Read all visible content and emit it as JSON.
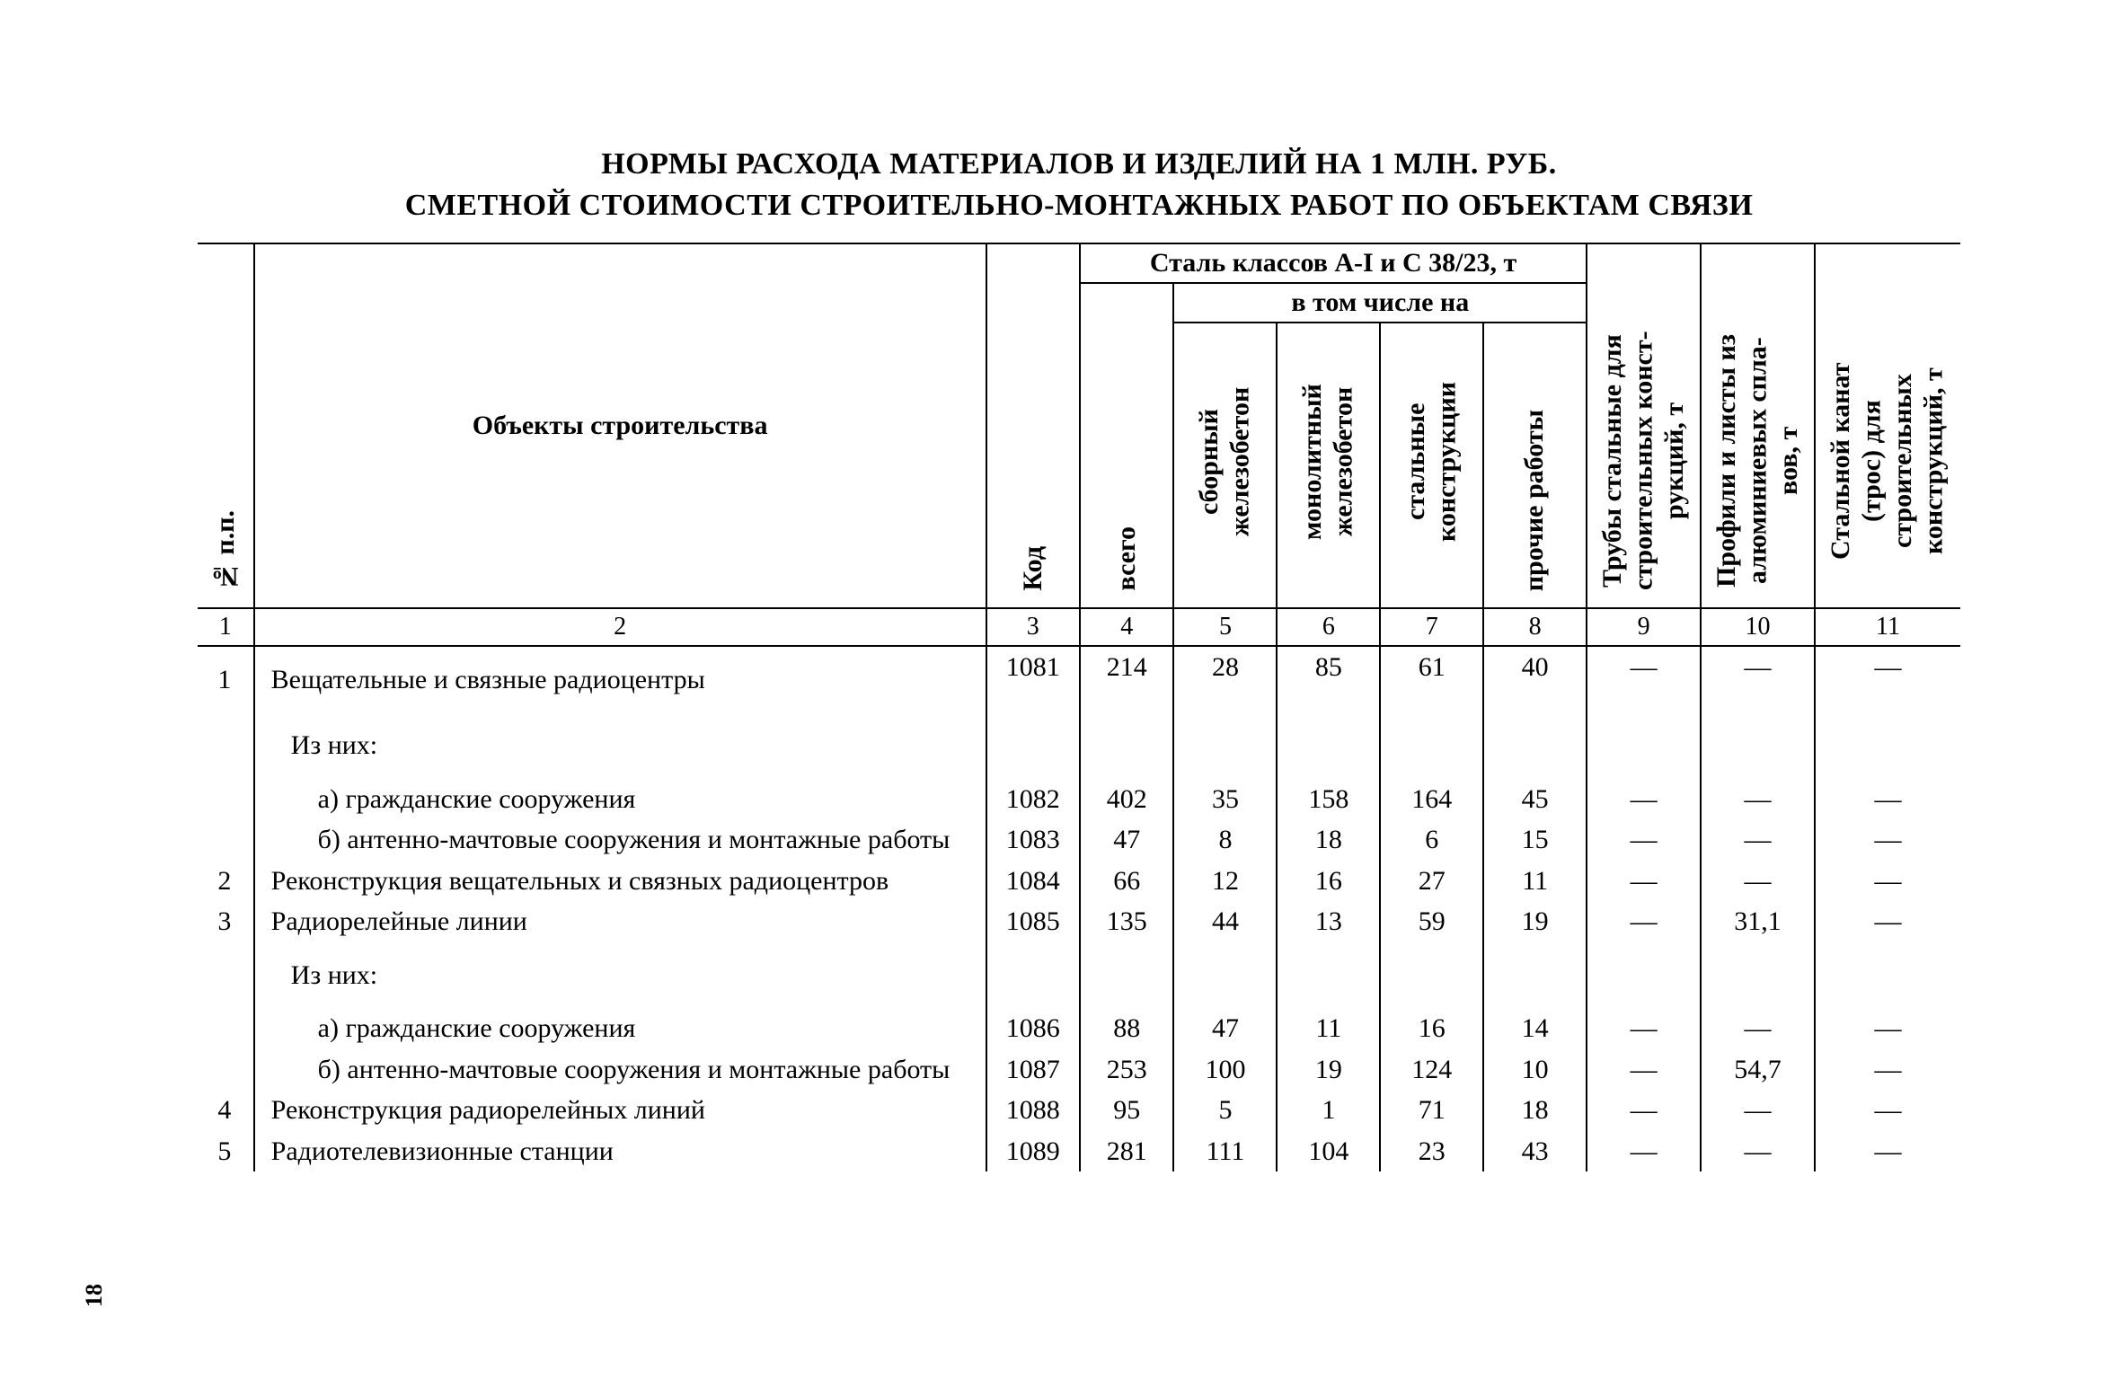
{
  "title_line1": "НОРМЫ РАСХОДА МАТЕРИАЛОВ И ИЗДЕЛИЙ НА 1 МЛН. РУБ.",
  "title_line2": "СМЕТНОЙ СТОИМОСТИ СТРОИТЕЛЬНО-МОНТАЖНЫХ РАБОТ ПО ОБЪЕКТАМ СВЯЗИ",
  "page_number": "18",
  "headers": {
    "npp": "№ п.п.",
    "objects": "Объекты строительства",
    "kod": "Код",
    "steel_group": "Сталь классов А-I и С 38/23, т",
    "vtom": "в том числе на",
    "vsego": "всего",
    "sbor": "сборный железобетон",
    "mono": "монолитный железобетон",
    "stalk": "стальные конструкции",
    "proch": "прочие работы",
    "truby": "Трубы стальные для строительных конст­рукций, т",
    "profili": "Профили и листы из алюминиевых спла­вов, т",
    "kanat": "Стальной канат (трос) для строительных конструкций, т"
  },
  "colnums": [
    "1",
    "2",
    "3",
    "4",
    "5",
    "6",
    "7",
    "8",
    "9",
    "10",
    "11"
  ],
  "rows": [
    {
      "n": "1",
      "obj": "Вещательные и связные радиоцентры",
      "kod": "1081",
      "c4": "214",
      "c5": "28",
      "c6": "85",
      "c7": "61",
      "c8": "40",
      "c9": "—",
      "c10": "—",
      "c11": "—",
      "cls": ""
    },
    {
      "n": "",
      "obj": "Из них:",
      "kod": "",
      "c4": "",
      "c5": "",
      "c6": "",
      "c7": "",
      "c8": "",
      "c9": "",
      "c10": "",
      "c11": "",
      "cls": "indent1"
    },
    {
      "n": "",
      "obj": "а) гражданские сооружения",
      "kod": "1082",
      "c4": "402",
      "c5": "35",
      "c6": "158",
      "c7": "164",
      "c8": "45",
      "c9": "—",
      "c10": "—",
      "c11": "—",
      "cls": "indent2"
    },
    {
      "n": "",
      "obj": "б) антенно-мачтовые сооружения и монтаж­ные работы",
      "kod": "1083",
      "c4": "47",
      "c5": "8",
      "c6": "18",
      "c7": "6",
      "c8": "15",
      "c9": "—",
      "c10": "—",
      "c11": "—",
      "cls": "indent2"
    },
    {
      "n": "2",
      "obj": "Реконструкция вещательных и связных радио­центров",
      "kod": "1084",
      "c4": "66",
      "c5": "12",
      "c6": "16",
      "c7": "27",
      "c8": "11",
      "c9": "—",
      "c10": "—",
      "c11": "—",
      "cls": ""
    },
    {
      "n": "3",
      "obj": "Радиорелейные линии",
      "kod": "1085",
      "c4": "135",
      "c5": "44",
      "c6": "13",
      "c7": "59",
      "c8": "19",
      "c9": "—",
      "c10": "31,1",
      "c11": "—",
      "cls": ""
    },
    {
      "n": "",
      "obj": "Из них:",
      "kod": "",
      "c4": "",
      "c5": "",
      "c6": "",
      "c7": "",
      "c8": "",
      "c9": "",
      "c10": "",
      "c11": "",
      "cls": "indent1"
    },
    {
      "n": "",
      "obj": "а) гражданские сооружения",
      "kod": "1086",
      "c4": "88",
      "c5": "47",
      "c6": "11",
      "c7": "16",
      "c8": "14",
      "c9": "—",
      "c10": "—",
      "c11": "—",
      "cls": "indent2"
    },
    {
      "n": "",
      "obj": "б) антенно-мачтовые сооружения и монтаж­ные работы",
      "kod": "1087",
      "c4": "253",
      "c5": "100",
      "c6": "19",
      "c7": "124",
      "c8": "10",
      "c9": "—",
      "c10": "54,7",
      "c11": "—",
      "cls": "indent2"
    },
    {
      "n": "4",
      "obj": "Реконструкция радиорелейных линий",
      "kod": "1088",
      "c4": "95",
      "c5": "5",
      "c6": "1",
      "c7": "71",
      "c8": "18",
      "c9": "—",
      "c10": "—",
      "c11": "—",
      "cls": ""
    },
    {
      "n": "5",
      "obj": "Радиотелевизионные станции",
      "kod": "1089",
      "c4": "281",
      "c5": "111",
      "c6": "104",
      "c7": "23",
      "c8": "43",
      "c9": "—",
      "c10": "—",
      "c11": "—",
      "cls": ""
    }
  ]
}
